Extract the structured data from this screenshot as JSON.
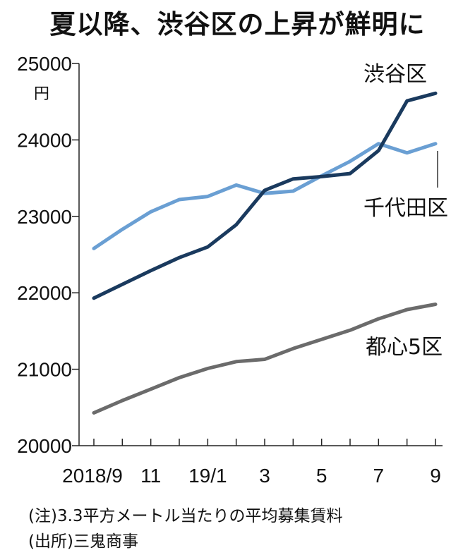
{
  "chart_data": {
    "type": "line",
    "title": "夏以降、渋谷区の上昇が鮮明に",
    "unit": "円",
    "ylim": [
      20000,
      25000
    ],
    "y_ticks": [
      "25000",
      "24000",
      "23000",
      "22000",
      "21000",
      "20000"
    ],
    "x_tick_labels": [
      "2018/9",
      "11",
      "19/1",
      "3",
      "5",
      "7",
      "9"
    ],
    "x": [
      "2018/9",
      "2018/10",
      "2018/11",
      "2018/12",
      "2019/1",
      "2019/2",
      "2019/3",
      "2019/4",
      "2019/5",
      "2019/6",
      "2019/7",
      "2019/8",
      "2019/9"
    ],
    "series": [
      {
        "name": "渋谷区",
        "color": "#1a3a5e",
        "values": [
          21930,
          22110,
          22290,
          22460,
          22600,
          22890,
          23340,
          23490,
          23520,
          23560,
          23860,
          24510,
          24610
        ]
      },
      {
        "name": "千代田区",
        "color": "#6a9fd3",
        "values": [
          22580,
          22830,
          23060,
          23220,
          23260,
          23410,
          23300,
          23330,
          23530,
          23720,
          23950,
          23830,
          23950
        ]
      },
      {
        "name": "都心5区",
        "color": "#6b6b6b",
        "values": [
          20430,
          20590,
          20740,
          20890,
          21010,
          21100,
          21130,
          21270,
          21390,
          21510,
          21660,
          21780,
          21850
        ]
      }
    ],
    "grid": false,
    "legend": "inline labels"
  },
  "notes": {
    "note_1": "(注)3.3平方メートル当たりの平均募集賃料",
    "note_2": "(出所)三鬼商事"
  }
}
